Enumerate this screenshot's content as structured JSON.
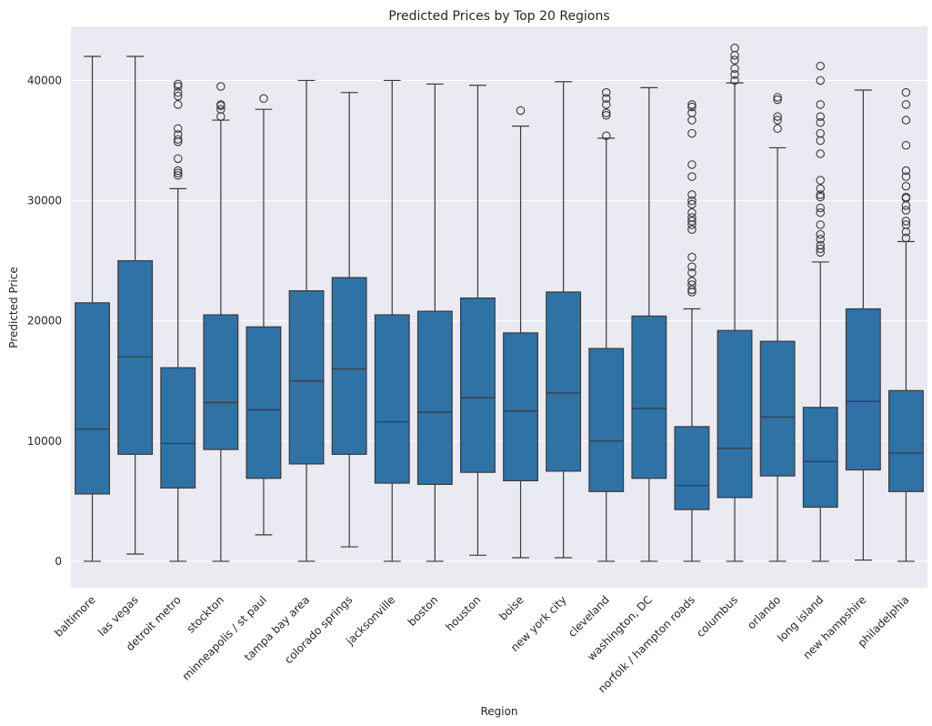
{
  "chart_data": {
    "type": "box",
    "title": "Predicted Prices by Top 20 Regions",
    "xlabel": "Region",
    "ylabel": "Predicted Price",
    "ylim": [
      -2200,
      44500
    ],
    "yticks": [
      0,
      10000,
      20000,
      30000,
      40000
    ],
    "grid": true,
    "box_color": "#2f72a6",
    "line_color": "#3a3a3a",
    "background_color": "#eaeaf2",
    "categories": [
      {
        "name": "baltimore",
        "whisker_low": 0,
        "q1": 5600,
        "median": 11000,
        "q3": 21500,
        "whisker_high": 42000,
        "outliers": []
      },
      {
        "name": "las vegas",
        "whisker_low": 600,
        "q1": 8900,
        "median": 17000,
        "q3": 25000,
        "whisker_high": 42000,
        "outliers": []
      },
      {
        "name": "detroit metro",
        "whisker_low": 0,
        "q1": 6100,
        "median": 9800,
        "q3": 16100,
        "whisker_high": 31000,
        "outliers": [
          32100,
          32300,
          32500,
          33500,
          34900,
          35100,
          35500,
          36000,
          38000,
          38700,
          39000,
          39500,
          39700
        ]
      },
      {
        "name": "stockton",
        "whisker_low": 0,
        "q1": 9300,
        "median": 13200,
        "q3": 20500,
        "whisker_high": 36700,
        "outliers": [
          37000,
          37600,
          37900,
          38000,
          39500
        ]
      },
      {
        "name": "minneapolis / st paul",
        "whisker_low": 2200,
        "q1": 6900,
        "median": 12600,
        "q3": 19500,
        "whisker_high": 37600,
        "outliers": [
          38500
        ]
      },
      {
        "name": "tampa bay area",
        "whisker_low": 0,
        "q1": 8100,
        "median": 15000,
        "q3": 22500,
        "whisker_high": 40000,
        "outliers": []
      },
      {
        "name": "colorado springs",
        "whisker_low": 1200,
        "q1": 8900,
        "median": 16000,
        "q3": 23600,
        "whisker_high": 39000,
        "outliers": []
      },
      {
        "name": "jacksonville",
        "whisker_low": 0,
        "q1": 6500,
        "median": 11600,
        "q3": 20500,
        "whisker_high": 40000,
        "outliers": []
      },
      {
        "name": "boston",
        "whisker_low": 0,
        "q1": 6400,
        "median": 12400,
        "q3": 20800,
        "whisker_high": 39700,
        "outliers": []
      },
      {
        "name": "houston",
        "whisker_low": 500,
        "q1": 7400,
        "median": 13600,
        "q3": 21900,
        "whisker_high": 39600,
        "outliers": []
      },
      {
        "name": "boise",
        "whisker_low": 300,
        "q1": 6700,
        "median": 12500,
        "q3": 19000,
        "whisker_high": 36200,
        "outliers": [
          37500
        ]
      },
      {
        "name": "new york city",
        "whisker_low": 300,
        "q1": 7500,
        "median": 14000,
        "q3": 22400,
        "whisker_high": 39900,
        "outliers": []
      },
      {
        "name": "cleveland",
        "whisker_low": 0,
        "q1": 5800,
        "median": 10000,
        "q3": 17700,
        "whisker_high": 35200,
        "outliers": [
          35400,
          37100,
          37300,
          38000,
          38500,
          39000
        ]
      },
      {
        "name": "washington, DC",
        "whisker_low": 0,
        "q1": 6900,
        "median": 12700,
        "q3": 20400,
        "whisker_high": 39400,
        "outliers": []
      },
      {
        "name": "norfolk / hampton roads",
        "whisker_low": 0,
        "q1": 4300,
        "median": 6300,
        "q3": 11200,
        "whisker_high": 21000,
        "outliers": [
          22400,
          22600,
          23000,
          23300,
          24000,
          24500,
          25300,
          27600,
          28000,
          28300,
          28600,
          29000,
          29700,
          30000,
          30500,
          32000,
          33000,
          35600,
          36700,
          37300,
          37800,
          38000
        ]
      },
      {
        "name": "columbus",
        "whisker_low": 0,
        "q1": 5300,
        "median": 9400,
        "q3": 19200,
        "whisker_high": 39800,
        "outliers": [
          40000,
          40500,
          41000,
          41700,
          42100,
          42700
        ]
      },
      {
        "name": "orlando",
        "whisker_low": 0,
        "q1": 7100,
        "median": 12000,
        "q3": 18300,
        "whisker_high": 34400,
        "outliers": [
          36000,
          36700,
          37000,
          38400,
          38600
        ]
      },
      {
        "name": "long island",
        "whisker_low": 0,
        "q1": 4500,
        "median": 8300,
        "q3": 12800,
        "whisker_high": 24900,
        "outliers": [
          25700,
          26000,
          26300,
          26800,
          27200,
          28000,
          29000,
          29400,
          30300,
          30500,
          31000,
          31700,
          33900,
          35000,
          35600,
          36500,
          37000,
          38000,
          40000,
          41200
        ]
      },
      {
        "name": "new hampshire",
        "whisker_low": 100,
        "q1": 7600,
        "median": 13300,
        "q3": 21000,
        "whisker_high": 39200,
        "outliers": []
      },
      {
        "name": "philadelphia",
        "whisker_low": 0,
        "q1": 5800,
        "median": 9000,
        "q3": 14200,
        "whisker_high": 26600,
        "outliers": [
          26900,
          27400,
          28000,
          28300,
          29200,
          29600,
          30200,
          30300,
          31200,
          32000,
          32500,
          34600,
          36700,
          38000,
          39000
        ]
      }
    ]
  }
}
